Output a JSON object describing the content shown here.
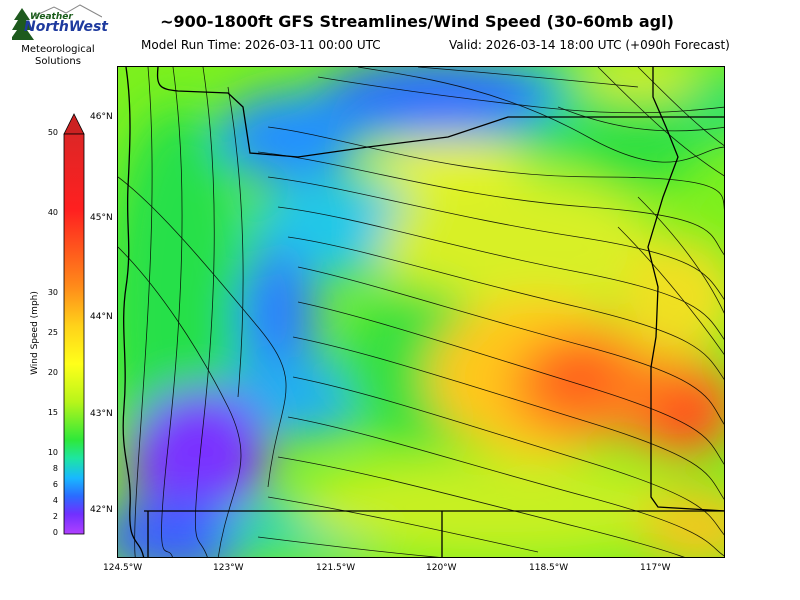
{
  "header": {
    "title": "~900-1800ft GFS Streamlines/Wind Speed (30-60mb agl)",
    "model_run": "Model Run Time: 2026-03-11 00:00 UTC",
    "valid": "Valid: 2026-03-14 18:00 UTC  (+090h Forecast)"
  },
  "logo": {
    "top_text": "Weather",
    "main_text": "NorthWest",
    "sub1": "Meteorological",
    "sub2": "Solutions"
  },
  "map": {
    "lat_labels": [
      "46°N",
      "45°N",
      "44°N",
      "43°N",
      "42°N"
    ],
    "lon_labels": [
      "124.5°W",
      "123°W",
      "121.5°W",
      "120°W",
      "118.5°W",
      "117°W"
    ]
  },
  "colorbar": {
    "label": "Wind Speed (mph)",
    "ticks": [
      "50",
      "40",
      "30",
      "25",
      "20",
      "15",
      "10",
      "8",
      "6",
      "4",
      "2",
      "0"
    ],
    "colors": [
      "#dd2626",
      "#ff2020",
      "#ff8a1a",
      "#ffd21a",
      "#ffff1a",
      "#c8f51a",
      "#38e83a",
      "#1ee6a0",
      "#18b8ff",
      "#2a6cff",
      "#7030ff",
      "#b040ff"
    ]
  }
}
